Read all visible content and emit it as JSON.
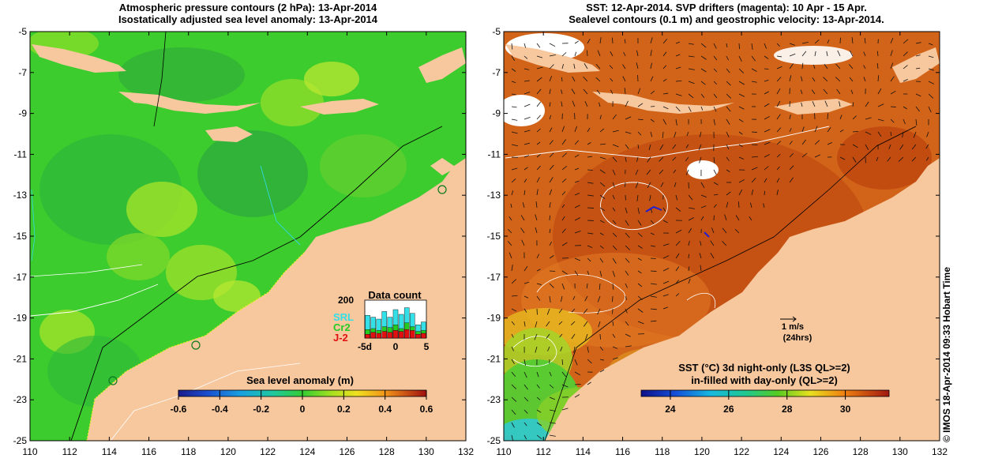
{
  "left_panel": {
    "title_line1": "Atmospheric pressure contours (2 hPa): 13-Apr-2014",
    "title_line2": "Isostatically adjusted sea level anomaly: 13-Apr-2014",
    "colorbar": {
      "label": "Sea level anomaly (m)",
      "ticks": [
        "-0.6",
        "-0.4",
        "-0.2",
        "0",
        "0.2",
        "0.4",
        "0.6"
      ],
      "range": [
        -0.6,
        0.6
      ]
    },
    "data_count": {
      "title": "Data count",
      "y_tick": "200",
      "x_ticks": [
        "-5d",
        "0",
        "5"
      ],
      "legend": [
        {
          "name": "SRL",
          "color": "#33e0e8"
        },
        {
          "name": "Cr2",
          "color": "#22cc22"
        },
        {
          "name": "J-2",
          "color": "#e01010"
        }
      ],
      "bars": [
        {
          "day": -5,
          "j2": 20,
          "cr2": 45,
          "srl": 120
        },
        {
          "day": -4,
          "j2": 30,
          "cr2": 50,
          "srl": 110
        },
        {
          "day": -3,
          "j2": 25,
          "cr2": 40,
          "srl": 100
        },
        {
          "day": -2,
          "j2": 35,
          "cr2": 60,
          "srl": 140
        },
        {
          "day": -1,
          "j2": 30,
          "cr2": 55,
          "srl": 110
        },
        {
          "day": 0,
          "j2": 40,
          "cr2": 70,
          "srl": 150
        },
        {
          "day": 1,
          "j2": 35,
          "cr2": 50,
          "srl": 125
        },
        {
          "day": 2,
          "j2": 45,
          "cr2": 80,
          "srl": 160
        },
        {
          "day": 3,
          "j2": 40,
          "cr2": 60,
          "srl": 130
        },
        {
          "day": 4,
          "j2": 20,
          "cr2": 35,
          "srl": 70
        },
        {
          "day": 5,
          "j2": 25,
          "cr2": 40,
          "srl": 85
        }
      ]
    }
  },
  "right_panel": {
    "title_line1": "SST: 12-Apr-2014. SVP drifters (magenta): 10 Apr - 15 Apr.",
    "title_line2": "Sealevel contours (0.1 m) and geostrophic velocity: 13-Apr-2014.",
    "vector_scale": {
      "line1": "1 m/s",
      "line2": "(24hrs)"
    },
    "colorbar": {
      "label_line1": "SST (°C)  3d night-only (L3S QL>=2)",
      "label_line2": "in-filled with day-only (QL>=2)",
      "ticks": [
        "24",
        "26",
        "28",
        "30"
      ],
      "range": [
        23,
        31.5
      ]
    }
  },
  "axes": {
    "lat_ticks": [
      "-5",
      "-7",
      "-9",
      "-11",
      "-13",
      "-15",
      "-17",
      "-19",
      "-21",
      "-23",
      "-25"
    ],
    "lon_ticks": [
      "110",
      "112",
      "114",
      "116",
      "118",
      "120",
      "122",
      "124",
      "126",
      "128",
      "130",
      "132"
    ],
    "lat_range": [
      -25,
      -5
    ],
    "lon_range": [
      110,
      132
    ]
  },
  "credit": "© IMOS 18-Apr-2014 09:33 Hobart Time",
  "colors": {
    "land": "#f7c79e",
    "sla_green": "#33cc33",
    "sla_dark": "#22aa33",
    "sla_light": "#88dd22",
    "sst_orange": "#d9600e",
    "sst_dark": "#b83a08",
    "sst_green": "#55cc33",
    "sst_cyan": "#33c8c8"
  }
}
